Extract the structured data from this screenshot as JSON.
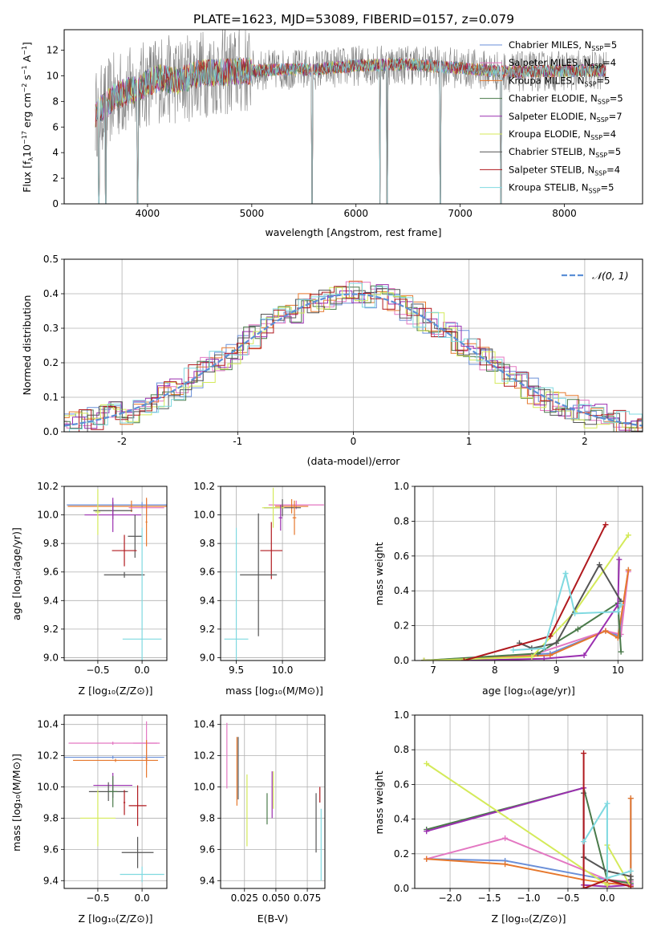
{
  "figure_title": "PLATE=1623, MJD=53089, FIBERID=0157, z=0.079",
  "colors": {
    "chabrier_miles": "#6a8fd8",
    "salpeter_miles": "#e377c2",
    "kroupa_miles": "#e6782d",
    "chabrier_elodie": "#4a7a4a",
    "salpeter_elodie": "#9b30b0",
    "kroupa_elodie": "#d4ea5a",
    "chabrier_stelib": "#555555",
    "salpeter_stelib": "#b0191e",
    "kroupa_stelib": "#7fd9e0",
    "data_gray": "#808080",
    "normal_dashed": "#5b8fd6",
    "grid": "#b0b0b0"
  },
  "chart_data": [
    {
      "type": "line",
      "panel": "spectrum",
      "xlabel": "wavelength [Angstrom, rest frame]",
      "ylabel": "Flux [fλ10⁻¹⁷ erg cm⁻² s⁻¹ A⁻¹]",
      "xlim": [
        3200,
        8750
      ],
      "ylim": [
        0,
        13.6
      ],
      "xticks": [
        4000,
        5000,
        6000,
        7000,
        8000
      ],
      "yticks": [
        0,
        2,
        4,
        6,
        8,
        10,
        12
      ],
      "grid": false,
      "legend_position": "top-right",
      "legend": [
        {
          "name": "Chabrier MILES, N_SSP=5",
          "label": "Chabrier MILES, N",
          "sub": "SSP",
          "suffix": "=5",
          "color_key": "chabrier_miles"
        },
        {
          "name": "Salpeter MILES, N_SSP=4",
          "label": "Salpeter MILES, N",
          "sub": "SSP",
          "suffix": "=4",
          "color_key": "salpeter_miles"
        },
        {
          "name": "Kroupa MILES, N_SSP=5",
          "label": "Kroupa MILES, N",
          "sub": "SSP",
          "suffix": "=5",
          "color_key": "kroupa_miles"
        },
        {
          "name": "Chabrier ELODIE, N_SSP=5",
          "label": "Chabrier ELODIE, N",
          "sub": "SSP",
          "suffix": "=5",
          "color_key": "chabrier_elodie"
        },
        {
          "name": "Salpeter ELODIE, N_SSP=7",
          "label": "Salpeter ELODIE, N",
          "sub": "SSP",
          "suffix": "=7",
          "color_key": "salpeter_elodie"
        },
        {
          "name": "Kroupa ELODIE, N_SSP=4",
          "label": "Kroupa ELODIE, N",
          "sub": "SSP",
          "suffix": "=4",
          "color_key": "kroupa_elodie"
        },
        {
          "name": "Chabrier STELIB, N_SSP=5",
          "label": "Chabrier STELIB, N",
          "sub": "SSP",
          "suffix": "=5",
          "color_key": "chabrier_stelib"
        },
        {
          "name": "Salpeter STELIB, N_SSP=4",
          "label": "Salpeter STELIB, N",
          "sub": "SSP",
          "suffix": "=4",
          "color_key": "salpeter_stelib"
        },
        {
          "name": "Kroupa STELIB, N_SSP=5",
          "label": "Kroupa STELIB, N",
          "sub": "SSP",
          "suffix": "=5",
          "color_key": "kroupa_stelib"
        }
      ],
      "continuum": [
        [
          3500,
          7.0
        ],
        [
          3700,
          8.5
        ],
        [
          3900,
          9.0
        ],
        [
          4100,
          9.8
        ],
        [
          4300,
          9.6
        ],
        [
          4500,
          10.2
        ],
        [
          4800,
          10.3
        ],
        [
          5000,
          10.4
        ],
        [
          5300,
          10.5
        ],
        [
          5600,
          10.5
        ],
        [
          6000,
          10.8
        ],
        [
          6500,
          10.9
        ],
        [
          7000,
          10.6
        ],
        [
          7300,
          10.4
        ],
        [
          7500,
          10.3
        ],
        [
          8000,
          10.4
        ],
        [
          8400,
          10.4
        ]
      ],
      "dips": [
        [
          3535,
          0
        ],
        [
          3600,
          0
        ],
        [
          3905,
          0
        ],
        [
          5577,
          0
        ],
        [
          6230,
          0
        ],
        [
          6300,
          0
        ],
        [
          6810,
          0
        ],
        [
          7390,
          0
        ]
      ]
    },
    {
      "type": "line",
      "panel": "residuals",
      "xlabel": "(data-model)/error",
      "ylabel": "Normed distribution",
      "xlim": [
        -2.5,
        2.5
      ],
      "ylim": [
        0,
        0.5
      ],
      "xticks": [
        -2,
        -1,
        0,
        1,
        2
      ],
      "yticks": [
        0.0,
        0.1,
        0.2,
        0.3,
        0.4,
        0.5
      ],
      "grid": true,
      "legend_position": "top-right",
      "legend_label": "𝒩(0, 1)",
      "series": [
        {
          "name": "normal",
          "values": "gaussian(0,1)"
        }
      ]
    },
    {
      "type": "scatter",
      "panel": "age_vs_Z",
      "xlabel": "Z [log₁₀(Z/Z⊙)]",
      "ylabel": "age  [log₁₀(age/yr)]",
      "xlim": [
        -0.88,
        0.28
      ],
      "ylim": [
        8.98,
        10.2
      ],
      "xticks": [
        -0.5,
        0.0
      ],
      "yticks": [
        9.0,
        9.2,
        9.4,
        9.6,
        9.8,
        10.0,
        10.2
      ],
      "grid": true,
      "points": [
        {
          "x": 0.0,
          "y": 10.07,
          "xerr": 0.85,
          "yerr": 0.02,
          "color_key": "chabrier_miles"
        },
        {
          "x": -0.12,
          "y": 10.06,
          "xerr": 0.72,
          "yerr": 0.04,
          "color_key": "kroupa_miles"
        },
        {
          "x": 0.05,
          "y": 10.05,
          "xerr": 0.2,
          "yerr": 0.06,
          "color_key": "salpeter_miles"
        },
        {
          "x": -0.33,
          "y": 10.03,
          "xerr": 0.22,
          "yerr": 0.06,
          "color_key": "chabrier_stelib"
        },
        {
          "x": -0.33,
          "y": 10.0,
          "xerr": 0.32,
          "yerr": 0.12,
          "color_key": "salpeter_elodie"
        },
        {
          "x": -0.5,
          "y": 10.02,
          "xerr": 0.03,
          "yerr": 0.16,
          "color_key": "kroupa_elodie"
        },
        {
          "x": 0.05,
          "y": 9.95,
          "xerr": 0.01,
          "yerr": 0.17,
          "color_key": "kroupa_miles"
        },
        {
          "x": -0.08,
          "y": 9.85,
          "xerr": 0.08,
          "yerr": 0.15,
          "color_key": "chabrier_stelib"
        },
        {
          "x": -0.2,
          "y": 9.75,
          "xerr": 0.14,
          "yerr": 0.11,
          "color_key": "salpeter_stelib"
        },
        {
          "x": -0.2,
          "y": 9.58,
          "xerr": 0.23,
          "yerr": 0.02,
          "color_key": "chabrier_stelib"
        },
        {
          "x": 0.0,
          "y": 9.13,
          "xerr": 0.22,
          "yerr": 0.78,
          "color_key": "kroupa_stelib"
        }
      ]
    },
    {
      "type": "scatter",
      "panel": "age_vs_mass",
      "xlabel": "mass [log₁₀(M/M⊙)]",
      "ylabel": "",
      "xlim": [
        9.33,
        10.46
      ],
      "ylim": [
        8.98,
        10.2
      ],
      "xticks": [
        9.5,
        10.0
      ],
      "yticks": [
        9.0,
        9.2,
        9.4,
        9.6,
        9.8,
        10.0,
        10.2
      ],
      "grid": true,
      "points": [
        {
          "x": 10.15,
          "y": 10.07,
          "xerr": 0.3,
          "yerr": 0.03,
          "color_key": "salpeter_miles"
        },
        {
          "x": 10.1,
          "y": 10.06,
          "xerr": 0.18,
          "yerr": 0.05,
          "color_key": "kroupa_miles"
        },
        {
          "x": 10.0,
          "y": 10.05,
          "xerr": 0.2,
          "yerr": 0.06,
          "color_key": "chabrier_stelib"
        },
        {
          "x": 9.9,
          "y": 10.05,
          "xerr": 0.12,
          "yerr": 0.14,
          "color_key": "kroupa_elodie"
        },
        {
          "x": 10.13,
          "y": 9.98,
          "xerr": 0.02,
          "yerr": 0.12,
          "color_key": "kroupa_miles"
        },
        {
          "x": 9.98,
          "y": 9.98,
          "xerr": 0.02,
          "yerr": 0.09,
          "color_key": "salpeter_elodie"
        },
        {
          "x": 9.88,
          "y": 9.75,
          "xerr": 0.12,
          "yerr": 0.2,
          "color_key": "salpeter_stelib"
        },
        {
          "x": 9.74,
          "y": 9.58,
          "xerr": 0.2,
          "yerr": 0.43,
          "color_key": "chabrier_stelib"
        },
        {
          "x": 9.5,
          "y": 9.13,
          "xerr": 0.13,
          "yerr": 0.78,
          "color_key": "kroupa_stelib"
        }
      ]
    },
    {
      "type": "line",
      "panel": "mass_weight_vs_age",
      "xlabel": "age  [log₁₀(age/yr)]",
      "ylabel": "mass weight",
      "xlim": [
        6.7,
        10.4
      ],
      "ylim": [
        0,
        1.0
      ],
      "xticks": [
        7,
        8,
        9,
        10
      ],
      "yticks": [
        0.0,
        0.2,
        0.4,
        0.6,
        0.8,
        1.0
      ],
      "grid": true,
      "series": [
        {
          "color_key": "chabrier_miles",
          "x": [
            6.85,
            8.9,
            9.8,
            10.02,
            10.17
          ],
          "y": [
            0.0,
            0.04,
            0.17,
            0.14,
            0.52
          ]
        },
        {
          "color_key": "salpeter_miles",
          "x": [
            6.85,
            8.6,
            9.8,
            10.05,
            10.17
          ],
          "y": [
            0.0,
            0.03,
            0.17,
            0.15,
            0.51
          ]
        },
        {
          "color_key": "kroupa_miles",
          "x": [
            6.85,
            8.9,
            9.8,
            10.0,
            10.17
          ],
          "y": [
            0.0,
            0.03,
            0.17,
            0.13,
            0.52
          ]
        },
        {
          "color_key": "chabrier_elodie",
          "x": [
            6.85,
            8.7,
            9.35,
            10.0,
            10.05
          ],
          "y": [
            0.0,
            0.04,
            0.18,
            0.33,
            0.05
          ]
        },
        {
          "color_key": "salpeter_elodie",
          "x": [
            7.5,
            8.8,
            9.45,
            10.0,
            10.02
          ],
          "y": [
            0.0,
            0.01,
            0.03,
            0.32,
            0.58
          ]
        },
        {
          "color_key": "kroupa_elodie",
          "x": [
            6.85,
            8.6,
            9.3,
            10.17
          ],
          "y": [
            0.0,
            0.02,
            0.28,
            0.72
          ]
        },
        {
          "color_key": "chabrier_stelib",
          "x": [
            8.4,
            8.6,
            9.0,
            9.7,
            10.05
          ],
          "y": [
            0.1,
            0.07,
            0.1,
            0.55,
            0.34
          ]
        },
        {
          "color_key": "salpeter_stelib",
          "x": [
            7.5,
            8.9,
            9.8
          ],
          "y": [
            0.0,
            0.14,
            0.78
          ]
        },
        {
          "color_key": "kroupa_stelib",
          "x": [
            8.3,
            8.8,
            9.15,
            9.3,
            10.0,
            10.05
          ],
          "y": [
            0.06,
            0.07,
            0.5,
            0.27,
            0.28,
            0.32
          ]
        }
      ]
    },
    {
      "type": "scatter",
      "panel": "mass_vs_Z",
      "xlabel": "Z [log₁₀(Z/Z⊙)]",
      "ylabel": "mass [log₁₀(M/M⊙)]",
      "xlim": [
        -0.88,
        0.28
      ],
      "ylim": [
        9.35,
        10.46
      ],
      "xticks": [
        -0.5,
        0.0
      ],
      "yticks": [
        9.4,
        9.6,
        9.8,
        10.0,
        10.2,
        10.4
      ],
      "grid": true,
      "points": [
        {
          "x": 0.05,
          "y": 10.28,
          "xerr": 0.15,
          "yerr": 0.14,
          "color_key": "salpeter_miles"
        },
        {
          "x": -0.33,
          "y": 10.19,
          "xerr": 0.58,
          "yerr": 0.01,
          "color_key": "chabrier_miles"
        },
        {
          "x": -0.33,
          "y": 10.28,
          "xerr": 0.5,
          "yerr": 0.01,
          "color_key": "salpeter_miles"
        },
        {
          "x": -0.3,
          "y": 10.17,
          "xerr": 0.48,
          "yerr": 0.01,
          "color_key": "kroupa_miles"
        },
        {
          "x": 0.05,
          "y": 10.18,
          "xerr": 0.01,
          "yerr": 0.12,
          "color_key": "kroupa_miles"
        },
        {
          "x": -0.33,
          "y": 10.01,
          "xerr": 0.22,
          "yerr": 0.08,
          "color_key": "salpeter_elodie"
        },
        {
          "x": -0.38,
          "y": 9.97,
          "xerr": 0.22,
          "yerr": 0.06,
          "color_key": "chabrier_stelib"
        },
        {
          "x": -0.33,
          "y": 9.97,
          "xerr": 0.05,
          "yerr": 0.1,
          "color_key": "chabrier_elodie"
        },
        {
          "x": -0.2,
          "y": 9.9,
          "xerr": 0.01,
          "yerr": 0.08,
          "color_key": "salpeter_stelib"
        },
        {
          "x": -0.5,
          "y": 9.8,
          "xerr": 0.2,
          "yerr": 0.18,
          "color_key": "kroupa_elodie"
        },
        {
          "x": -0.05,
          "y": 9.88,
          "xerr": 0.1,
          "yerr": 0.13,
          "color_key": "salpeter_stelib"
        },
        {
          "x": -0.05,
          "y": 9.58,
          "xerr": 0.18,
          "yerr": 0.1,
          "color_key": "chabrier_stelib"
        },
        {
          "x": 0.0,
          "y": 9.44,
          "xerr": 0.25,
          "yerr": 0.05,
          "color_key": "kroupa_stelib"
        }
      ]
    },
    {
      "type": "scatter",
      "panel": "mass_vs_ebv",
      "xlabel": "E(B-V)",
      "ylabel": "",
      "xlim": [
        0.006,
        0.089
      ],
      "ylim": [
        9.35,
        10.46
      ],
      "xticks": [
        0.025,
        0.05,
        0.075
      ],
      "xticklabels": [
        "0.025",
        "0.050",
        "0.075"
      ],
      "yticks": [
        9.4,
        9.6,
        9.8,
        10.0,
        10.2,
        10.4
      ],
      "grid": true,
      "points": [
        {
          "x": 0.011,
          "y": 10.2,
          "yerr": 0.21,
          "color_key": "salpeter_miles"
        },
        {
          "x": 0.019,
          "y": 10.1,
          "yerr": 0.22,
          "color_key": "kroupa_miles"
        },
        {
          "x": 0.02,
          "y": 10.12,
          "yerr": 0.2,
          "color_key": "chabrier_stelib"
        },
        {
          "x": 0.027,
          "y": 9.85,
          "yerr": 0.23,
          "color_key": "kroupa_elodie"
        },
        {
          "x": 0.043,
          "y": 9.86,
          "yerr": 0.1,
          "color_key": "chabrier_elodie"
        },
        {
          "x": 0.047,
          "y": 9.95,
          "yerr": 0.15,
          "color_key": "salpeter_elodie"
        },
        {
          "x": 0.048,
          "y": 9.98,
          "yerr": 0.12,
          "color_key": "kroupa_elodie"
        },
        {
          "x": 0.082,
          "y": 9.77,
          "yerr": 0.19,
          "color_key": "chabrier_stelib"
        },
        {
          "x": 0.085,
          "y": 9.95,
          "yerr": 0.05,
          "color_key": "salpeter_stelib"
        },
        {
          "x": 0.086,
          "y": 9.63,
          "yerr": 0.23,
          "color_key": "kroupa_stelib"
        }
      ]
    },
    {
      "type": "line",
      "panel": "mass_weight_vs_Z",
      "xlabel": "Z [log₁₀(Z/Z⊙)]",
      "ylabel": "mass weight",
      "xlim": [
        -2.45,
        0.45
      ],
      "ylim": [
        0,
        1.0
      ],
      "xticks": [
        -2.0,
        -1.5,
        -1.0,
        -0.5,
        0.0
      ],
      "xticklabels": [
        "−2.0",
        "−1.5",
        "−1.0",
        "−0.5",
        "0.0"
      ],
      "yticks": [
        0.0,
        0.2,
        0.4,
        0.6,
        0.8,
        1.0
      ],
      "grid": true,
      "series": [
        {
          "color_key": "chabrier_miles",
          "x": [
            -2.3,
            -1.3,
            0.0,
            0.3,
            0.3
          ],
          "y": [
            0.17,
            0.16,
            0.05,
            0.03,
            0.52
          ]
        },
        {
          "color_key": "salpeter_miles",
          "x": [
            -2.3,
            -1.3,
            0.0,
            0.3
          ],
          "y": [
            0.17,
            0.29,
            0.05,
            0.04
          ]
        },
        {
          "color_key": "kroupa_miles",
          "x": [
            -2.3,
            -1.3,
            -0.3,
            0.0,
            0.3,
            0.3
          ],
          "y": [
            0.17,
            0.14,
            0.05,
            0.03,
            0.02,
            0.52
          ]
        },
        {
          "color_key": "chabrier_elodie",
          "x": [
            -2.3,
            -0.3,
            0.0,
            0.3
          ],
          "y": [
            0.34,
            0.58,
            0.05,
            0.03
          ]
        },
        {
          "color_key": "salpeter_elodie",
          "x": [
            -2.3,
            -0.3,
            -0.3,
            0.0,
            0.3
          ],
          "y": [
            0.33,
            0.58,
            0.02,
            0.01,
            0.02
          ]
        },
        {
          "color_key": "kroupa_elodie",
          "x": [
            -2.3,
            0.0,
            0.0,
            0.3
          ],
          "y": [
            0.72,
            0.02,
            0.25,
            0.01
          ]
        },
        {
          "color_key": "chabrier_stelib",
          "x": [
            -0.3,
            -0.3,
            0.0,
            0.3,
            0.3
          ],
          "y": [
            0.55,
            0.18,
            0.1,
            0.07,
            0.05
          ]
        },
        {
          "color_key": "salpeter_stelib",
          "x": [
            -0.3,
            -0.3,
            0.0,
            0.3
          ],
          "y": [
            0.78,
            0.0,
            0.05,
            0.01
          ]
        },
        {
          "color_key": "kroupa_stelib",
          "x": [
            -0.3,
            0.0,
            0.0,
            0.3
          ],
          "y": [
            0.27,
            0.49,
            0.06,
            0.1
          ]
        }
      ]
    }
  ]
}
